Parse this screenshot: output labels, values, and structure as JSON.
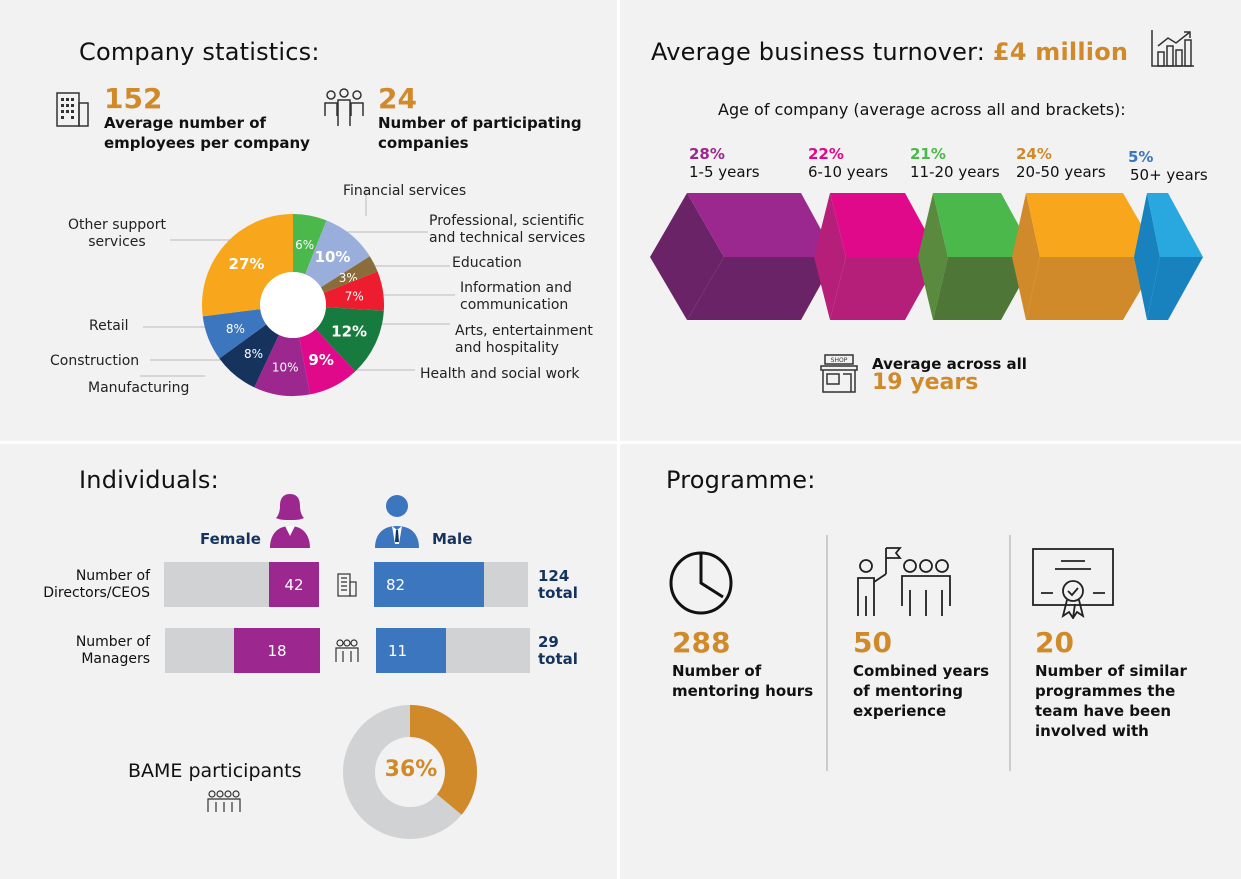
{
  "company": {
    "title": "Company statistics:",
    "employees_value": "152",
    "employees_label": "Average number of employees per company",
    "companies_value": "24",
    "companies_label": "Number of participating companies"
  },
  "chart_data": [
    {
      "type": "pie",
      "variant": "donut",
      "start": "top",
      "direction": "clockwise",
      "slices": [
        {
          "label": "Financial services",
          "value": 6,
          "color": "#4ab84a"
        },
        {
          "label": "Professional, scientific and technical services",
          "value": 10,
          "color": "#9aaedb"
        },
        {
          "label": "Education",
          "value": 3,
          "color": "#8a6d3b"
        },
        {
          "label": "Information and communication",
          "value": 7,
          "color": "#ed1c2e"
        },
        {
          "label": "Arts, entertainment and hospitality",
          "value": 12,
          "color": "#177a3e"
        },
        {
          "label": "Health and social work",
          "value": 9,
          "color": "#e0098a"
        },
        {
          "label": "Manufacturing",
          "value": 10,
          "color": "#9b278f"
        },
        {
          "label": "Construction",
          "value": 8,
          "color": "#16335e"
        },
        {
          "label": "Retail",
          "value": 8,
          "color": "#3b76bf"
        },
        {
          "label": "Other support services",
          "value": 27,
          "color": "#f8a71c"
        }
      ]
    },
    {
      "type": "bar",
      "title": "Age of company (average across all and brackets):",
      "categories": [
        "1-5 years",
        "6-10 years",
        "11-20 years",
        "20-50 years",
        "50+ years"
      ],
      "values": [
        28,
        22,
        21,
        24,
        5
      ],
      "colors": [
        "#9b288f",
        "#e0098a",
        "#4ab84a",
        "#f8a71c",
        "#29a8e0"
      ]
    },
    {
      "type": "pie",
      "variant": "donut",
      "title": "BAME participants",
      "value": 36,
      "colors": [
        "#d08a2a",
        "#d1d2d4"
      ]
    }
  ],
  "turnover": {
    "title": "Average business turnover:",
    "value": "£4 million",
    "age_title": "Age of company (average across all and brackets):",
    "brackets": [
      {
        "pct": "28%",
        "label": "1-5 years"
      },
      {
        "pct": "22%",
        "label": "6-10 years"
      },
      {
        "pct": "21%",
        "label": "11-20 years"
      },
      {
        "pct": "24%",
        "label": "20-50 years"
      },
      {
        "pct": "5%",
        "label": "50+ years"
      }
    ],
    "avg_label": "Average across all",
    "avg_value": "19 years",
    "shop_sign": "SHOP"
  },
  "individuals": {
    "title": "Individuals:",
    "female": "Female",
    "male": "Male",
    "rows": [
      {
        "label1": "Number of",
        "label2": "Directors/CEOS",
        "female": 42,
        "male": 82,
        "total_value": "124",
        "total_word": "total"
      },
      {
        "label1": "Number of",
        "label2": "Managers",
        "female": 18,
        "male": 11,
        "total_value": "29",
        "total_word": "total"
      }
    ],
    "bame_label": "BAME participants",
    "bame_pct": "36%"
  },
  "programme": {
    "title": "Programme:",
    "items": [
      {
        "value": "288",
        "label": "Number of mentoring hours"
      },
      {
        "value": "50",
        "label": "Combined years of mentoring experience"
      },
      {
        "value": "20",
        "label": "Number of similar programmes the team have been involved with"
      }
    ]
  }
}
